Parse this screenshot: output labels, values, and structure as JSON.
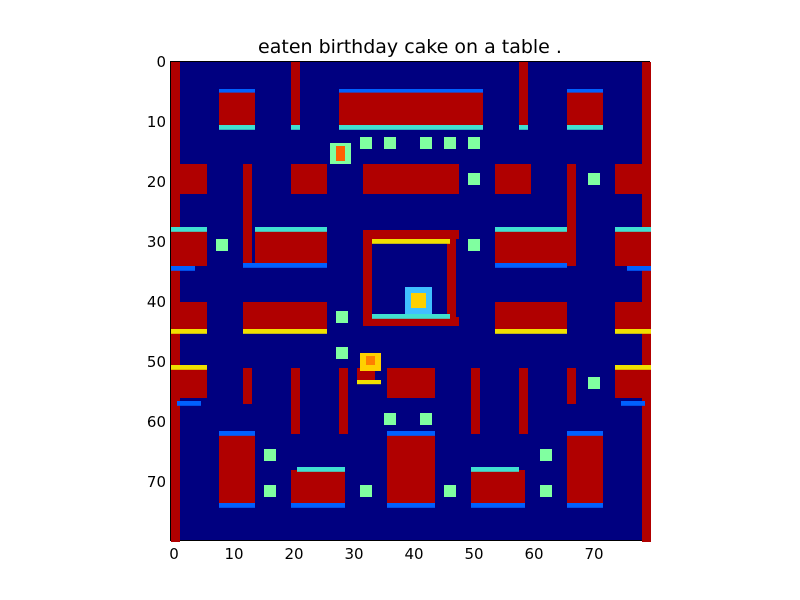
{
  "title": "eaten birthday cake on a table .",
  "axes": {
    "x_ticks": [
      "0",
      "10",
      "20",
      "30",
      "40",
      "50",
      "60",
      "70"
    ],
    "y_ticks": [
      "0",
      "10",
      "20",
      "30",
      "40",
      "50",
      "60",
      "70"
    ],
    "xlim": [
      0,
      80
    ],
    "ylim": [
      80,
      0
    ]
  },
  "colors": {
    "background": "#000080",
    "wall": "#b00000",
    "wall_edge_cyan": "#40e0d0",
    "wall_edge_yellow": "#f0e000",
    "wall_edge_blue": "#0060ff",
    "pellet": "#80ffa0",
    "pacman": "#ffd000",
    "ghost": "#40c0ff"
  },
  "scene": {
    "type": "pacman-like maze rendered as jet-colormap heatmap",
    "characters": [
      {
        "name": "ghost-top-left",
        "col": 28,
        "row": 15
      },
      {
        "name": "ghost-center",
        "col": 41,
        "row": 40
      },
      {
        "name": "pacman",
        "col": 33,
        "row": 50
      }
    ]
  }
}
